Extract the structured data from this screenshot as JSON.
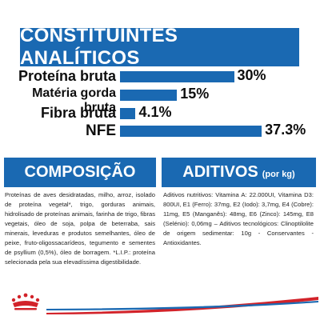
{
  "header": {
    "title": "CONSTITUINTES ANALÍTICOS"
  },
  "constituents": [
    {
      "label": "Proteína bruta",
      "value_text": "30%",
      "value": 30
    },
    {
      "label": "Matéria gorda bruta",
      "value_text": "15%",
      "value": 15
    },
    {
      "label": "Fibra bruta",
      "value_text": "4.1%",
      "value": 4.1
    },
    {
      "label": "NFE",
      "value_text": "37.3%",
      "value": 37.3
    }
  ],
  "composition": {
    "title": "COMPOSIÇÃO",
    "text": "Proteínas de aves desidratadas, milho, arroz, isolado de proteína vegetal*, trigo, gorduras animais, hidrolisado de proteínas animais, farinha de trigo, fibras vegetais, óleo de soja, polpa de beterraba, sais minerais, leveduras e produtos semelhantes, óleo de peixe, fruto-oligossacarídeos, tegumento e sementes de psyllium (0,5%), óleo de borragem. *L.I.P.: proteína selecionada pela sua elevadíssima digestibilidade."
  },
  "additives": {
    "title": "ADITIVOS",
    "subtitle": "(por kg)",
    "text": "Aditivos nutritivos: Vitamina A: 22.000UI, Vitamina D3: 800UI, E1 (Ferro): 37mg, E2 (Iodo): 3,7mg, E4 (Cobre): 11mg, E5 (Manganês): 48mg, E6 (Zinco): 145mg, E8 (Selénio): 0,06mg – Aditivos tecnológicos: Clinoptilolite de origem sedimentar: 10g - Conservantes - Antioxidantes."
  },
  "colors": {
    "brand_blue": "#1a69b2",
    "brand_red": "#d2232a"
  },
  "icons": {
    "logo": "crown-logo-icon",
    "decoration": "swoosh-decoration"
  }
}
